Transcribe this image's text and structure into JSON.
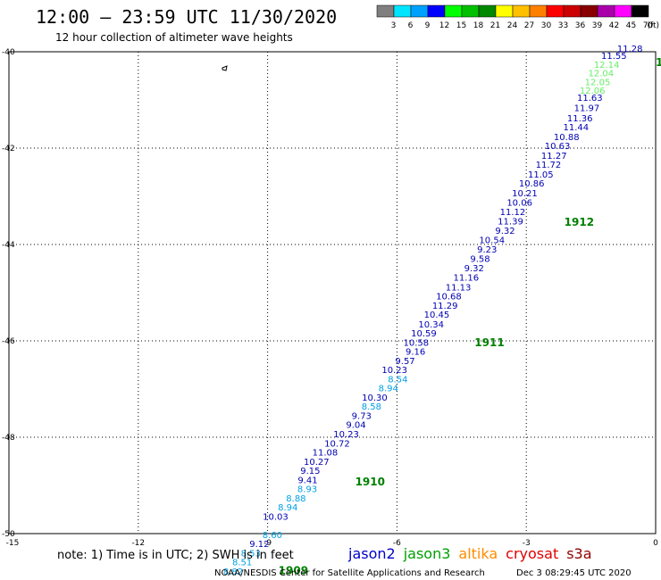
{
  "header": {
    "title": "12:00 – 23:59 UTC 11/30/2020",
    "subtitle": "12 hour collection of altimeter wave heights"
  },
  "color_scale": {
    "labels": [
      "3",
      "6",
      "9",
      "12",
      "15",
      "18",
      "21",
      "24",
      "27",
      "30",
      "33",
      "36",
      "39",
      "42",
      "45",
      "70"
    ],
    "unit": "(ft)",
    "colors": [
      "#7f7f7f",
      "#00e5ff",
      "#00a0ff",
      "#0000ff",
      "#00ff00",
      "#00c000",
      "#008800",
      "#ffff00",
      "#ffc000",
      "#ff8000",
      "#ff0000",
      "#cc0000",
      "#880000",
      "#aa00aa",
      "#ff00ff",
      "#000000"
    ]
  },
  "chart_data": {
    "type": "scatter",
    "xlim": [
      -15,
      0
    ],
    "ylim": [
      -50,
      -40
    ],
    "x_ticks": [
      -15,
      -12,
      -9,
      -6,
      -3,
      0
    ],
    "x_tick_labels": [
      "-15",
      "-12",
      "-9",
      "-6",
      "-3",
      "0"
    ],
    "y_ticks": [
      -40,
      -42,
      -44,
      -46,
      -48,
      -50
    ],
    "y_tick_labels": [
      "-40",
      "-42",
      "-44",
      "-46",
      "-48",
      "-50"
    ],
    "grid": true,
    "series": [
      {
        "name": "jason2",
        "color": "#0000b4",
        "points": [
          {
            "x": -0.3,
            "y": -40.0,
            "v": "11.28"
          },
          {
            "x": -0.67,
            "y": -40.15,
            "v": "11.55"
          },
          {
            "x": -1.23,
            "y": -41.02,
            "v": "11.63"
          },
          {
            "x": -1.3,
            "y": -41.23,
            "v": "11.97"
          },
          {
            "x": -1.46,
            "y": -41.44,
            "v": "11.36"
          },
          {
            "x": -1.55,
            "y": -41.63,
            "v": "11.44"
          },
          {
            "x": -1.77,
            "y": -41.83,
            "v": "10.88"
          },
          {
            "x": -1.98,
            "y": -42.02,
            "v": "10.63"
          },
          {
            "x": -2.06,
            "y": -42.22,
            "v": "11.27"
          },
          {
            "x": -2.19,
            "y": -42.41,
            "v": "11.72"
          },
          {
            "x": -2.37,
            "y": -42.61,
            "v": "11.05"
          },
          {
            "x": -2.58,
            "y": -42.8,
            "v": "10.86"
          },
          {
            "x": -2.74,
            "y": -43.0,
            "v": "10.21"
          },
          {
            "x": -2.86,
            "y": -43.19,
            "v": "10.06"
          },
          {
            "x": -3.02,
            "y": -43.39,
            "v": "11.12"
          },
          {
            "x": -3.07,
            "y": -43.58,
            "v": "11.39"
          },
          {
            "x": -3.26,
            "y": -43.78,
            "v": "9.32"
          },
          {
            "x": -3.5,
            "y": -43.97,
            "v": "10.54"
          },
          {
            "x": -3.68,
            "y": -44.17,
            "v": "9.23"
          },
          {
            "x": -3.84,
            "y": -44.36,
            "v": "9.58"
          },
          {
            "x": -3.98,
            "y": -44.56,
            "v": "9.32"
          },
          {
            "x": -4.1,
            "y": -44.75,
            "v": "11.16"
          },
          {
            "x": -4.28,
            "y": -44.95,
            "v": "11.13"
          },
          {
            "x": -4.5,
            "y": -45.14,
            "v": "10.68"
          },
          {
            "x": -4.59,
            "y": -45.33,
            "v": "11.29"
          },
          {
            "x": -4.78,
            "y": -45.52,
            "v": "10.45"
          },
          {
            "x": -4.91,
            "y": -45.72,
            "v": "10.34"
          },
          {
            "x": -5.08,
            "y": -45.91,
            "v": "10.59"
          },
          {
            "x": -5.26,
            "y": -46.1,
            "v": "10.58"
          },
          {
            "x": -5.34,
            "y": -46.29,
            "v": "9.16"
          },
          {
            "x": -5.58,
            "y": -46.48,
            "v": "9.57"
          },
          {
            "x": -5.76,
            "y": -46.67,
            "v": "10.23"
          },
          {
            "x": -6.22,
            "y": -47.24,
            "v": "10.30"
          },
          {
            "x": -6.59,
            "y": -47.62,
            "v": "9.73"
          },
          {
            "x": -6.72,
            "y": -47.81,
            "v": "9.04"
          },
          {
            "x": -6.88,
            "y": -48.0,
            "v": "10.23"
          },
          {
            "x": -7.09,
            "y": -48.19,
            "v": "10.72"
          },
          {
            "x": -7.37,
            "y": -48.38,
            "v": "11.08"
          },
          {
            "x": -7.57,
            "y": -48.57,
            "v": "10.27"
          },
          {
            "x": -7.78,
            "y": -48.76,
            "v": "9.15"
          },
          {
            "x": -7.84,
            "y": -48.95,
            "v": "9.41"
          },
          {
            "x": -8.52,
            "y": -49.71,
            "v": "10.03"
          },
          {
            "x": -8.96,
            "y": -50.28,
            "v": "9.12"
          }
        ]
      },
      {
        "name": "jason2-light",
        "color": "#00a0e6",
        "points": [
          {
            "x": -5.75,
            "y": -46.86,
            "v": "8.54"
          },
          {
            "x": -5.97,
            "y": -47.05,
            "v": "8.94"
          },
          {
            "x": -6.36,
            "y": -47.43,
            "v": "8.58"
          },
          {
            "x": -7.85,
            "y": -49.14,
            "v": "8.93"
          },
          {
            "x": -8.11,
            "y": -49.33,
            "v": "8.88"
          },
          {
            "x": -8.3,
            "y": -49.52,
            "v": "8.94"
          },
          {
            "x": -8.66,
            "y": -50.09,
            "v": "8.60"
          },
          {
            "x": -9.16,
            "y": -50.47,
            "v": "8.53"
          },
          {
            "x": -9.36,
            "y": -50.66,
            "v": "8.51"
          },
          {
            "x": -9.57,
            "y": -50.85,
            "v": "8.82"
          }
        ]
      },
      {
        "name": "jason3",
        "color": "#66ee66",
        "points": [
          {
            "x": -0.84,
            "y": -40.33,
            "v": "12.14"
          },
          {
            "x": -0.97,
            "y": -40.51,
            "v": "12.04"
          },
          {
            "x": -1.05,
            "y": -40.69,
            "v": "12.05"
          },
          {
            "x": -1.17,
            "y": -40.87,
            "v": "12.06"
          }
        ]
      }
    ],
    "annotations": [
      {
        "text": "1909",
        "x": -8.75,
        "y": -50.84
      },
      {
        "text": "1910",
        "x": -6.97,
        "y": -49.0
      },
      {
        "text": "1911",
        "x": -4.2,
        "y": -46.11
      },
      {
        "text": "1912",
        "x": -2.12,
        "y": -43.61
      },
      {
        "text": "1",
        "x": 0.0,
        "y": -40.3
      }
    ],
    "legend": [
      {
        "label": "jason2",
        "color": "#0000c8"
      },
      {
        "label": "jason3",
        "color": "#00a000"
      },
      {
        "label": "altika",
        "color": "#ff8c00"
      },
      {
        "label": "cryosat",
        "color": "#e00000"
      },
      {
        "label": "s3a",
        "color": "#900000"
      }
    ]
  },
  "footer": {
    "note": "note: 1) Time is in UTC; 2) SWH is in feet",
    "credit": "NOAA/NESDIS Center for Satellite Applications and Research",
    "timestamp": "Dec  3 08:29:45 UTC 2020"
  }
}
